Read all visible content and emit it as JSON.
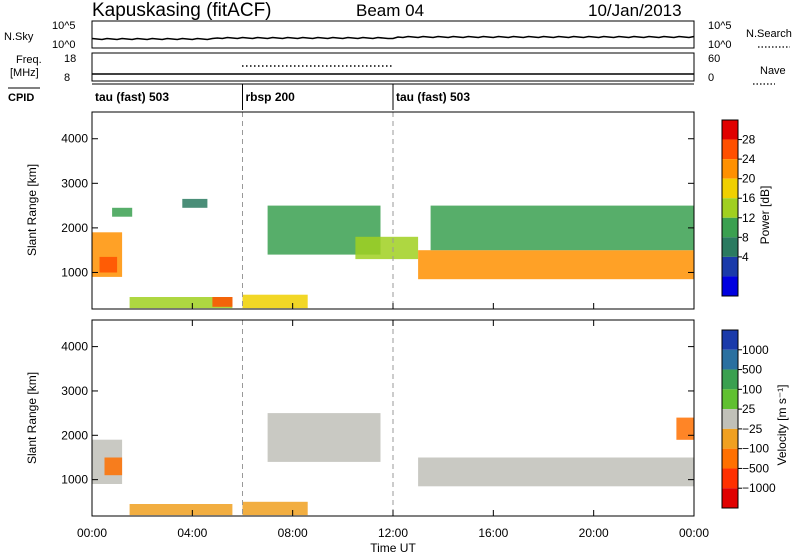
{
  "header": {
    "station": "Kapuskasing (fitACF)",
    "beam": "Beam 04",
    "date": "10/Jan/2013"
  },
  "noise_panel": {
    "left_label": "N.Sky",
    "right_label": "N.Search",
    "left_ticks": [
      "10^5",
      "10^0"
    ],
    "right_ticks": [
      "10^5",
      "10^0"
    ]
  },
  "freq_panel": {
    "left_label_line1": "Freq.",
    "left_label_line2": "[MHz]",
    "right_label": "Nave",
    "left_ticks": [
      "18",
      "8"
    ],
    "right_ticks": [
      "60",
      "0"
    ]
  },
  "cpid_panel": {
    "label": "CPID",
    "segments": [
      {
        "label": "tau (fast) 503",
        "start_hour": 0,
        "end_hour": 6
      },
      {
        "label": "rbsp 200",
        "start_hour": 6,
        "end_hour": 12
      },
      {
        "label": "tau (fast) 503",
        "start_hour": 12,
        "end_hour": 24
      }
    ]
  },
  "power_panel": {
    "ylabel": "Slant Range [km]",
    "cbar_label": "Power [dB]",
    "cbar_ticks": [
      "28",
      "24",
      "20",
      "16",
      "12",
      "8",
      "4"
    ],
    "cbar_colors": [
      "#e00000",
      "#ff5000",
      "#ff9000",
      "#f0d000",
      "#a0d020",
      "#3aa050",
      "#2a7a60",
      "#1a3aaa",
      "#0000e0"
    ]
  },
  "velocity_panel": {
    "ylabel": "Slant Range [km]",
    "cbar_label": "Velocity [m s⁻¹]",
    "cbar_ticks": [
      "1000",
      "500",
      "100",
      "25",
      "−25",
      "−100",
      "−500",
      "−1000"
    ],
    "cbar_colors": [
      "#1a3aaa",
      "#2a70a0",
      "#3aa050",
      "#60c030",
      "#c0c0b8",
      "#f0a020",
      "#ff7000",
      "#ff3000",
      "#e00000"
    ]
  },
  "axes": {
    "xlabel": "Time UT",
    "xticks": [
      "00:00",
      "04:00",
      "08:00",
      "12:00",
      "16:00",
      "20:00",
      "00:00"
    ],
    "yticks": [
      "1000",
      "2000",
      "3000",
      "4000"
    ]
  },
  "chart_data": {
    "type": "heatmap",
    "title": "Kapuskasing (fitACF) Beam 04 10/Jan/2013",
    "xlabel": "Time UT",
    "ylabel": "Slant Range [km]",
    "xlim_hours": [
      0,
      24
    ],
    "ylim_km": [
      180,
      4600
    ],
    "series": [
      {
        "name": "Power [dB]",
        "regions": [
          {
            "t0": 0.0,
            "t1": 1.2,
            "r0": 900,
            "r1": 1900,
            "value": 20
          },
          {
            "t0": 0.3,
            "t1": 1.0,
            "r0": 1000,
            "r1": 1350,
            "value": 26
          },
          {
            "t0": 0.8,
            "t1": 1.6,
            "r0": 2250,
            "r1": 2450,
            "value": 8
          },
          {
            "t0": 3.6,
            "t1": 4.6,
            "r0": 2450,
            "r1": 2650,
            "value": 6
          },
          {
            "t0": 1.5,
            "t1": 5.6,
            "r0": 200,
            "r1": 450,
            "value": 14
          },
          {
            "t0": 4.8,
            "t1": 5.6,
            "r0": 230,
            "r1": 450,
            "value": 24
          },
          {
            "t0": 6.0,
            "t1": 8.6,
            "r0": 200,
            "r1": 500,
            "value": 16
          },
          {
            "t0": 7.0,
            "t1": 11.5,
            "r0": 1400,
            "r1": 2500,
            "value": 8
          },
          {
            "t0": 10.5,
            "t1": 13.0,
            "r0": 1300,
            "r1": 1800,
            "value": 12
          },
          {
            "t0": 13.0,
            "t1": 24.0,
            "r0": 850,
            "r1": 1500,
            "value": 20
          },
          {
            "t0": 13.5,
            "t1": 24.0,
            "r0": 1500,
            "r1": 2500,
            "value": 8
          }
        ]
      },
      {
        "name": "Velocity [m s⁻¹]",
        "regions": [
          {
            "t0": 0.0,
            "t1": 1.2,
            "r0": 900,
            "r1": 1900,
            "value": 0
          },
          {
            "t0": 0.5,
            "t1": 1.2,
            "r0": 1100,
            "r1": 1500,
            "value": -120
          },
          {
            "t0": 1.5,
            "t1": 5.6,
            "r0": 200,
            "r1": 450,
            "value": -60
          },
          {
            "t0": 6.0,
            "t1": 8.6,
            "r0": 200,
            "r1": 500,
            "value": -100
          },
          {
            "t0": 7.0,
            "t1": 11.5,
            "r0": 1400,
            "r1": 2500,
            "value": 0
          },
          {
            "t0": 13.0,
            "t1": 24.0,
            "r0": 850,
            "r1": 1500,
            "value": 0
          },
          {
            "t0": 23.3,
            "t1": 24.0,
            "r0": 1900,
            "r1": 2400,
            "value": -120
          }
        ]
      }
    ]
  }
}
